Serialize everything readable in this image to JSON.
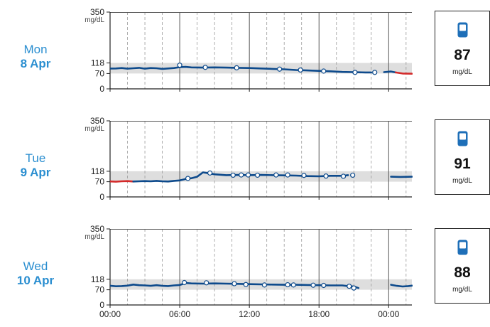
{
  "chart_data": [
    {
      "type": "line",
      "day": "Mon",
      "date": "8 Apr",
      "unit": "mg/dL",
      "ylim": [
        0,
        350
      ],
      "y_ticks": [
        {
          "value": 0,
          "label": "0"
        },
        {
          "value": 70,
          "label": "70"
        },
        {
          "value": 118,
          "label": "118"
        },
        {
          "value": 350,
          "label": "350"
        }
      ],
      "target_range": [
        70,
        118
      ],
      "xlim_hours": [
        0,
        26
      ],
      "x_ticks": [
        {
          "value": 0,
          "label": "00:00"
        },
        {
          "value": 6,
          "label": "06:00"
        },
        {
          "value": 12,
          "label": "12:00"
        },
        {
          "value": 18,
          "label": "18:00"
        },
        {
          "value": 24,
          "label": "00:00"
        }
      ],
      "reading": "87",
      "reading_unit": "mg/dL",
      "segments": [
        {
          "color": "#0d4a8c",
          "points": [
            [
              -0.3,
              92
            ],
            [
              0.5,
              93
            ],
            [
              1,
              95
            ],
            [
              1.5,
              92
            ],
            [
              2,
              94
            ],
            [
              2.5,
              96
            ],
            [
              3,
              92
            ],
            [
              3.5,
              95
            ],
            [
              4,
              94
            ],
            [
              4.5,
              91
            ],
            [
              5,
              93
            ],
            [
              5.5,
              95
            ],
            [
              6,
              99
            ],
            [
              6.5,
              100
            ],
            [
              7,
              98
            ],
            [
              8,
              97
            ],
            [
              9,
              98
            ],
            [
              10,
              97
            ],
            [
              11,
              96
            ],
            [
              12,
              95
            ],
            [
              13,
              93
            ],
            [
              14,
              91
            ],
            [
              15,
              89
            ],
            [
              16,
              86
            ],
            [
              17,
              84
            ],
            [
              18,
              82
            ],
            [
              19,
              80
            ],
            [
              20,
              77
            ],
            [
              21,
              76
            ],
            [
              22,
              75
            ],
            [
              22.5,
              75
            ]
          ]
        },
        {
          "color": "#0d4a8c",
          "points": [
            [
              23.6,
              76
            ],
            [
              24.2,
              79
            ],
            [
              24.6,
              75
            ]
          ]
        },
        {
          "color": "#d42a2a",
          "points": [
            [
              24.6,
              75
            ],
            [
              25.2,
              70
            ],
            [
              26,
              69
            ]
          ]
        }
      ],
      "markers": [
        {
          "x": 6,
          "y": 108
        },
        {
          "x": 8.2,
          "y": 98
        },
        {
          "x": 10.9,
          "y": 96
        },
        {
          "x": 14.6,
          "y": 90
        },
        {
          "x": 16.4,
          "y": 86
        },
        {
          "x": 18.4,
          "y": 81
        },
        {
          "x": 21.1,
          "y": 75
        },
        {
          "x": 22.8,
          "y": 75
        }
      ]
    },
    {
      "type": "line",
      "day": "Tue",
      "date": "9 Apr",
      "unit": "mg/dL",
      "ylim": [
        0,
        350
      ],
      "y_ticks": [
        {
          "value": 0,
          "label": "0"
        },
        {
          "value": 70,
          "label": "70"
        },
        {
          "value": 118,
          "label": "118"
        },
        {
          "value": 350,
          "label": "350"
        }
      ],
      "target_range": [
        70,
        118
      ],
      "xlim_hours": [
        0,
        26
      ],
      "x_ticks": [
        {
          "value": 0,
          "label": "00:00"
        },
        {
          "value": 6,
          "label": "06:00"
        },
        {
          "value": 12,
          "label": "12:00"
        },
        {
          "value": 18,
          "label": "18:00"
        },
        {
          "value": 24,
          "label": "00:00"
        }
      ],
      "reading": "91",
      "reading_unit": "mg/dL",
      "segments": [
        {
          "color": "#d42a2a",
          "points": [
            [
              -0.3,
              72
            ],
            [
              0.5,
              70
            ],
            [
              1,
              72
            ],
            [
              1.5,
              73
            ],
            [
              2,
              71
            ]
          ]
        },
        {
          "color": "#0d4a8c",
          "points": [
            [
              2,
              71
            ],
            [
              2.5,
              72
            ],
            [
              3,
              73
            ],
            [
              3.5,
              72
            ],
            [
              4,
              74
            ],
            [
              4.5,
              72
            ],
            [
              5,
              71
            ],
            [
              5.5,
              74
            ],
            [
              6,
              76
            ],
            [
              6.5,
              82
            ],
            [
              7,
              86
            ],
            [
              7.5,
              93
            ],
            [
              8,
              113
            ],
            [
              8.5,
              109
            ],
            [
              9,
              104
            ],
            [
              9.5,
              102
            ],
            [
              10,
              100
            ],
            [
              11,
              101
            ],
            [
              12,
              100
            ],
            [
              13,
              101
            ],
            [
              14,
              100
            ],
            [
              15,
              99
            ],
            [
              16,
              98
            ],
            [
              17,
              96
            ],
            [
              18,
              95
            ],
            [
              19,
              97
            ],
            [
              20,
              97
            ],
            [
              20.5,
              100
            ]
          ]
        },
        {
          "color": "#0d4a8c",
          "points": [
            [
              24.2,
              93
            ],
            [
              25,
              92
            ],
            [
              26,
              93
            ]
          ]
        }
      ],
      "markers": [
        {
          "x": 6.7,
          "y": 85
        },
        {
          "x": 8.6,
          "y": 110
        },
        {
          "x": 10.6,
          "y": 100
        },
        {
          "x": 11.3,
          "y": 101
        },
        {
          "x": 11.9,
          "y": 101
        },
        {
          "x": 12.7,
          "y": 100
        },
        {
          "x": 14.3,
          "y": 101
        },
        {
          "x": 15.3,
          "y": 101
        },
        {
          "x": 16.7,
          "y": 99
        },
        {
          "x": 18.6,
          "y": 96
        },
        {
          "x": 20.1,
          "y": 95
        },
        {
          "x": 20.9,
          "y": 100
        }
      ]
    },
    {
      "type": "line",
      "day": "Wed",
      "date": "10 Apr",
      "unit": "mg/dL",
      "ylim": [
        0,
        350
      ],
      "y_ticks": [
        {
          "value": 0,
          "label": "0"
        },
        {
          "value": 70,
          "label": "70"
        },
        {
          "value": 118,
          "label": "118"
        },
        {
          "value": 350,
          "label": "350"
        }
      ],
      "target_range": [
        70,
        118
      ],
      "xlim_hours": [
        0,
        26
      ],
      "x_ticks": [
        {
          "value": 0,
          "label": "00:00"
        },
        {
          "value": 6,
          "label": "06:00"
        },
        {
          "value": 12,
          "label": "12:00"
        },
        {
          "value": 18,
          "label": "18:00"
        },
        {
          "value": 24,
          "label": "00:00"
        }
      ],
      "reading": "88",
      "reading_unit": "mg/dL",
      "segments": [
        {
          "color": "#0d4a8c",
          "points": [
            [
              -0.3,
              90
            ],
            [
              0.5,
              86
            ],
            [
              1,
              87
            ],
            [
              1.5,
              89
            ],
            [
              2,
              94
            ],
            [
              2.5,
              91
            ],
            [
              3,
              90
            ],
            [
              3.5,
              88
            ],
            [
              4,
              91
            ],
            [
              4.5,
              88
            ],
            [
              5,
              87
            ],
            [
              5.5,
              90
            ],
            [
              6,
              92
            ],
            [
              6.5,
              101
            ],
            [
              7,
              99
            ],
            [
              8,
              98
            ],
            [
              9,
              99
            ],
            [
              10,
              98
            ],
            [
              11,
              97
            ],
            [
              12,
              96
            ],
            [
              13,
              95
            ],
            [
              14,
              94
            ],
            [
              15,
              93
            ],
            [
              16,
              93
            ],
            [
              17,
              92
            ],
            [
              18,
              91
            ],
            [
              19,
              90
            ],
            [
              20,
              90
            ],
            [
              20.5,
              87
            ],
            [
              21,
              85
            ],
            [
              21.4,
              78
            ]
          ]
        },
        {
          "color": "#0d4a8c",
          "points": [
            [
              24.2,
              93
            ],
            [
              24.7,
              88
            ],
            [
              25.2,
              85
            ],
            [
              25.7,
              87
            ],
            [
              26,
              89
            ]
          ]
        }
      ],
      "markers": [
        {
          "x": 6.4,
          "y": 103
        },
        {
          "x": 8.3,
          "y": 102
        },
        {
          "x": 10.7,
          "y": 98
        },
        {
          "x": 11.7,
          "y": 94
        },
        {
          "x": 13.3,
          "y": 92
        },
        {
          "x": 15.3,
          "y": 93
        },
        {
          "x": 15.8,
          "y": 92
        },
        {
          "x": 17.5,
          "y": 91
        },
        {
          "x": 18.4,
          "y": 90
        },
        {
          "x": 20.6,
          "y": 86
        },
        {
          "x": 21.0,
          "y": 78
        }
      ]
    }
  ]
}
